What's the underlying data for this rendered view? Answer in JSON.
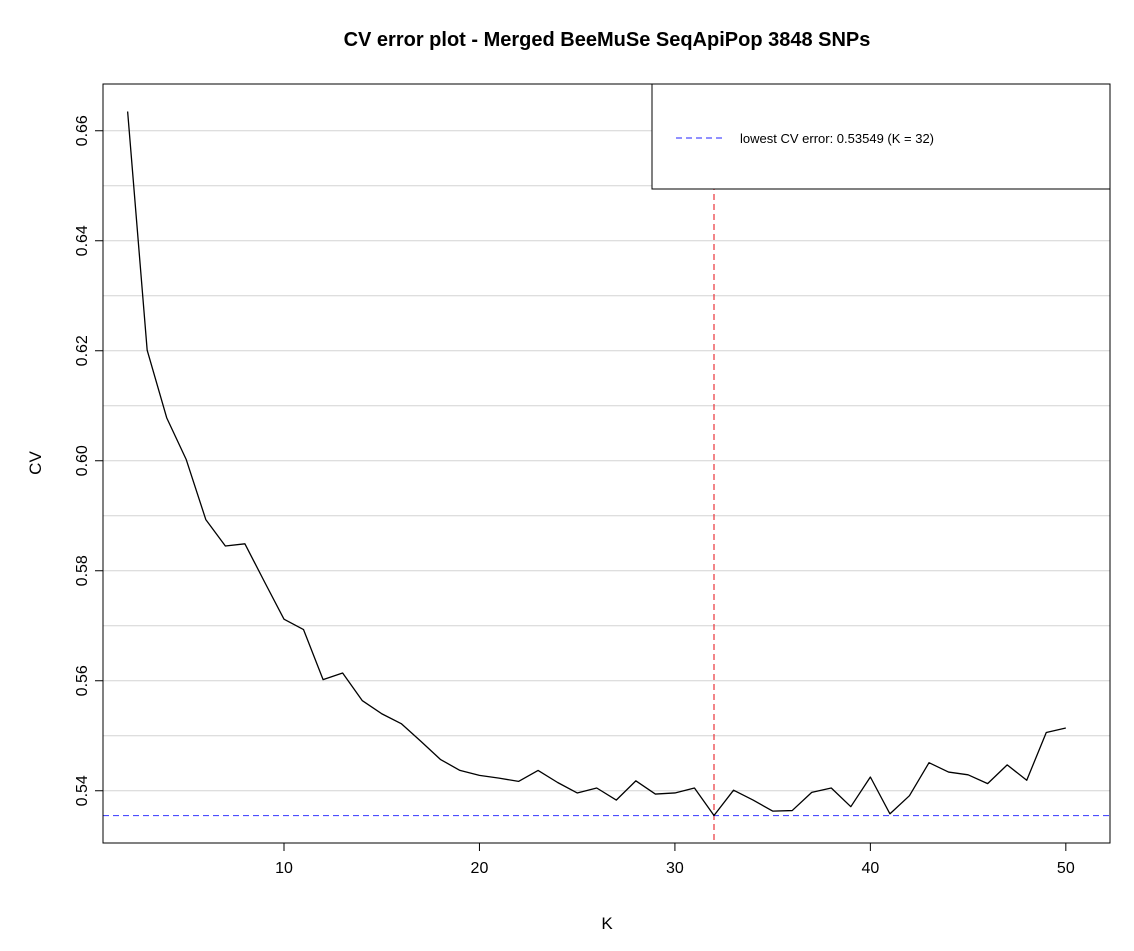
{
  "chart_data": {
    "type": "line",
    "title": "CV error plot - Merged BeeMuSe SeqApiPop 3848 SNPs",
    "xlabel": "K",
    "ylabel": "CV",
    "xlim": [
      0.74,
      52.26
    ],
    "ylim": [
      0.5305,
      0.6685
    ],
    "x_ticks": [
      10,
      20,
      30,
      40,
      50
    ],
    "y_ticks": [
      0.54,
      0.56,
      0.58,
      0.6,
      0.62,
      0.64,
      0.66
    ],
    "y_tick_labels": [
      "0.54",
      "0.56",
      "0.58",
      "0.60",
      "0.62",
      "0.64",
      "0.66"
    ],
    "grid": {
      "horizontal": true,
      "vertical": false,
      "color": "#d3d3d3"
    },
    "series": [
      {
        "color": "#000000",
        "x": [
          2,
          3,
          4,
          5,
          6,
          7,
          8,
          9,
          10,
          11,
          12,
          13,
          14,
          15,
          16,
          17,
          18,
          19,
          20,
          21,
          22,
          23,
          24,
          25,
          26,
          27,
          28,
          29,
          30,
          31,
          32,
          33,
          34,
          35,
          36,
          37,
          38,
          39,
          40,
          41,
          42,
          43,
          44,
          45,
          46,
          47,
          48,
          49,
          50
        ],
        "y": [
          0.6635,
          0.6201,
          0.6078,
          0.6002,
          0.5893,
          0.5845,
          0.5849,
          0.578,
          0.5712,
          0.5693,
          0.5602,
          0.5614,
          0.5564,
          0.554,
          0.5522,
          0.549,
          0.5457,
          0.5437,
          0.5428,
          0.5423,
          0.5417,
          0.5437,
          0.5415,
          0.5396,
          0.5405,
          0.5383,
          0.5418,
          0.5394,
          0.5396,
          0.5405,
          0.5355,
          0.5401,
          0.5383,
          0.5363,
          0.5364,
          0.5397,
          0.5405,
          0.5371,
          0.5425,
          0.5358,
          0.5391,
          0.5451,
          0.5434,
          0.5429,
          0.5413,
          0.5447,
          0.5419,
          0.5506,
          0.5514
        ]
      }
    ],
    "annotations": {
      "min_k": 32,
      "min_cv": 0.53549,
      "vline_color": "#e8333a",
      "hline_color": "#4d4dff"
    },
    "legend": {
      "position": "top-right",
      "entries": [
        {
          "label": "lowest CV error: 0.53549 (K = 32)",
          "color": "#4d4dff",
          "style": "dashed"
        }
      ]
    }
  }
}
